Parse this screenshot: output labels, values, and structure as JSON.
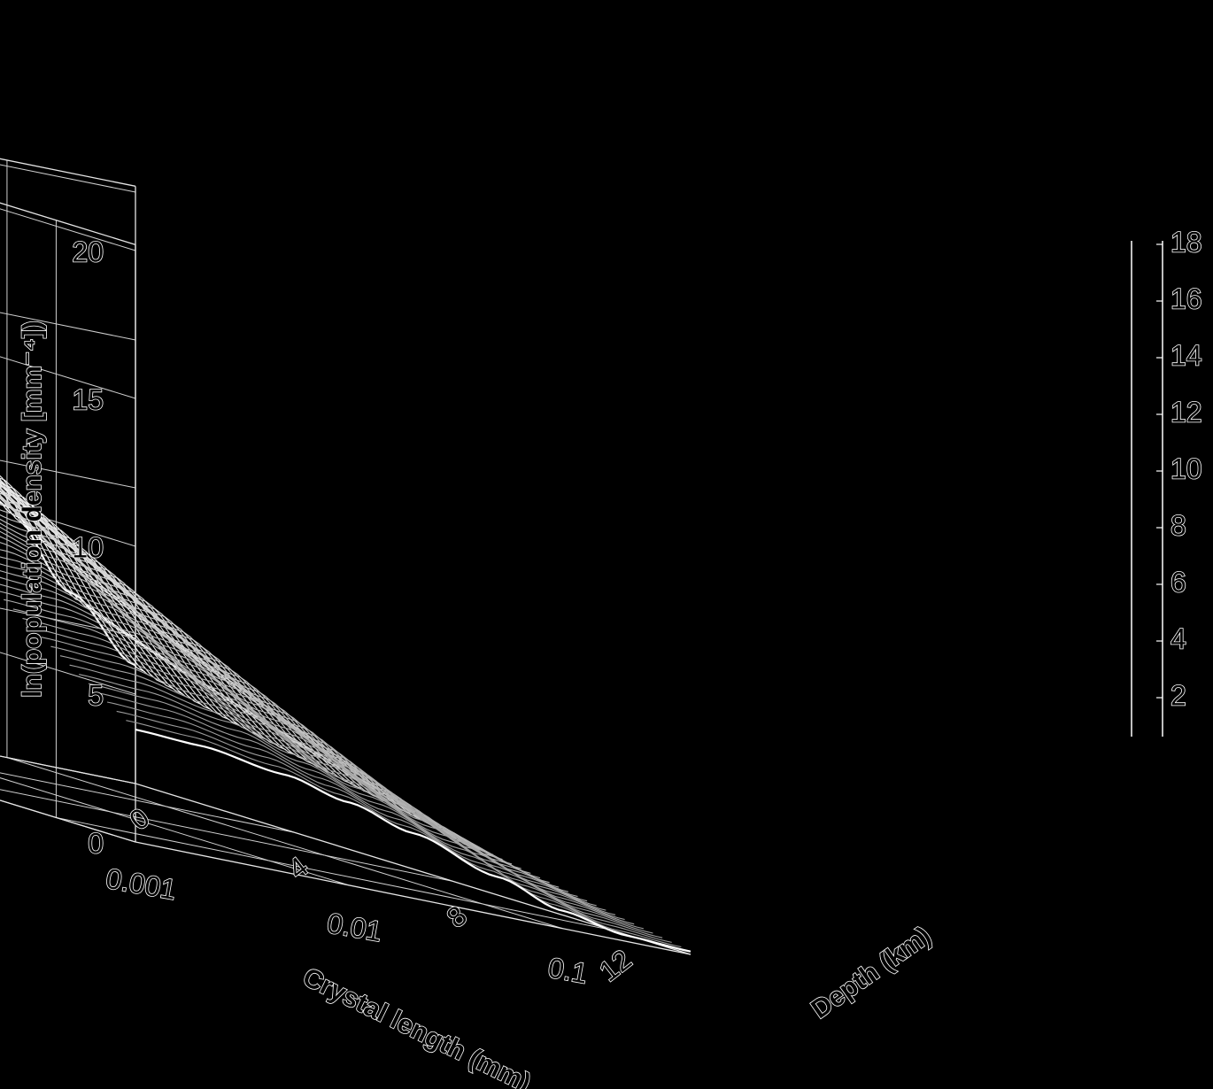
{
  "chart_data": {
    "type": "surface-waterfall",
    "title": "",
    "xlabel": "Crystal length (mm)",
    "ylabel": "Depth (km)",
    "zlabel": "ln(population density [mm⁻⁴])",
    "x_scale": "log",
    "x_ticks": [
      "0.001",
      "0.01",
      "0.1"
    ],
    "y_ticks": [
      "0",
      "4",
      "8",
      "12"
    ],
    "z_ticks": [
      "0",
      "5",
      "10",
      "15",
      "20"
    ],
    "colorbar_ticks": [
      "2",
      "4",
      "6",
      "8",
      "10",
      "12",
      "14",
      "16",
      "18"
    ],
    "xlim": [
      0.001,
      0.4
    ],
    "ylim": [
      0,
      14
    ],
    "zlim": [
      0,
      20
    ],
    "curve_count": 60,
    "surface_profile": {
      "x": [
        0.001,
        0.002,
        0.005,
        0.01,
        0.02,
        0.05,
        0.1,
        0.2,
        0.4
      ],
      "z_at_depth_0": [
        18.5,
        18.3,
        17.0,
        14.8,
        13.0,
        11.0,
        8.5,
        6.0,
        4.0
      ],
      "z_at_depth_14": [
        3.8,
        3.7,
        3.3,
        2.8,
        2.2,
        1.3,
        0.6,
        0.2,
        0.1
      ]
    },
    "grid": true,
    "colors": {
      "background": "#000000",
      "lines": "#ffffff"
    }
  }
}
